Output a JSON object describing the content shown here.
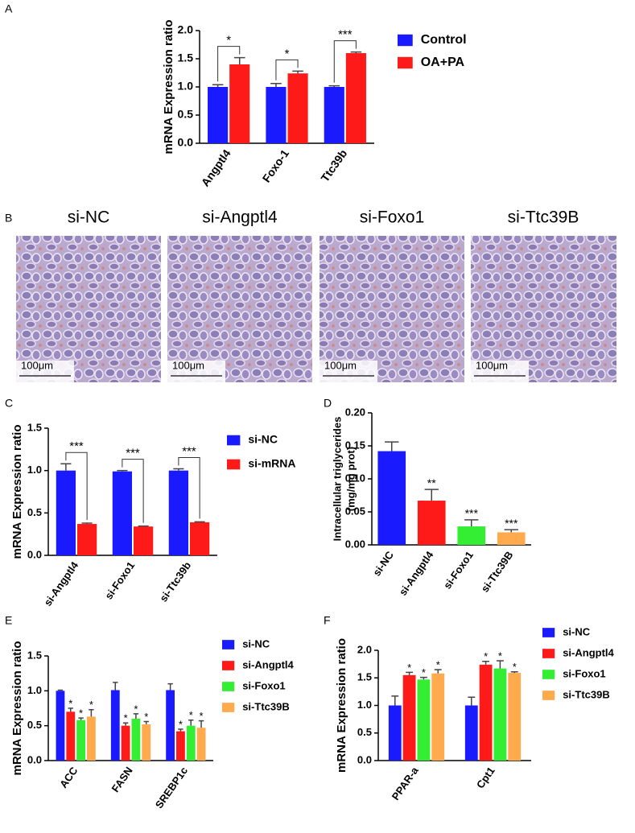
{
  "chart_data": [
    {
      "type": "bar",
      "label": "A",
      "ylabel": "mRNA Expression ratio",
      "categories": [
        "Angptl4",
        "Foxo-1",
        "Ttc39b"
      ],
      "series": [
        {
          "name": "Control",
          "color": "#1a1aff",
          "values": [
            1.0,
            1.0,
            1.0
          ],
          "errors": [
            0.04,
            0.06,
            0.02
          ]
        },
        {
          "name": "OA+PA",
          "color": "#ff1a1a",
          "values": [
            1.4,
            1.24,
            1.6
          ],
          "errors": [
            0.12,
            0.04,
            0.02
          ]
        }
      ],
      "significance": [
        "*",
        "*",
        "***"
      ],
      "ylim": [
        0,
        2
      ],
      "yticks": [
        {
          "value": 0,
          "label": "0.0"
        },
        {
          "value": 0.5,
          "label": "0.5"
        },
        {
          "value": 1,
          "label": "1.0"
        },
        {
          "value": 1.5,
          "label": "1.5"
        },
        {
          "value": 2,
          "label": "2.0"
        }
      ]
    },
    {
      "type": "bar",
      "label": "C",
      "ylabel": "mRNA Expression ratio",
      "categories": [
        "si-Angptl4",
        "si-Foxo1",
        "si-Ttc39b"
      ],
      "series": [
        {
          "name": "si-NC",
          "color": "#1a1aff",
          "values": [
            1.0,
            0.99,
            1.0
          ],
          "errors": [
            0.08,
            0.01,
            0.02
          ]
        },
        {
          "name": "si-mRNA",
          "color": "#ff1a1a",
          "values": [
            0.37,
            0.34,
            0.39
          ],
          "errors": [
            0.01,
            0.005,
            0.005
          ]
        }
      ],
      "significance": [
        "***",
        "***",
        "***"
      ],
      "ylim": [
        0,
        1.5
      ],
      "yticks": [
        {
          "value": 0,
          "label": "0.0"
        },
        {
          "value": 0.5,
          "label": "0.5"
        },
        {
          "value": 1,
          "label": "1.0"
        },
        {
          "value": 1.5,
          "label": "1.5"
        }
      ]
    },
    {
      "type": "bar",
      "label": "D",
      "ylabel": [
        "Intracellular triglycerides",
        "(mg/mg prot)"
      ],
      "categories": [
        "si-NC",
        "si-Angptl4",
        "si-Foxo1",
        "si-Ttc39B"
      ],
      "values": [
        0.142,
        0.067,
        0.028,
        0.019
      ],
      "errors": [
        0.014,
        0.017,
        0.01,
        0.004
      ],
      "colors": [
        "#1a1aff",
        "#ff1a1a",
        "#33ee33",
        "#ffaa4d"
      ],
      "significance": [
        null,
        "**",
        "***",
        "***"
      ],
      "ylim": [
        0,
        0.2
      ],
      "yticks": [
        {
          "value": 0,
          "label": "0.00"
        },
        {
          "value": 0.05,
          "label": "0.05"
        },
        {
          "value": 0.1,
          "label": "0.10"
        },
        {
          "value": 0.15,
          "label": "0.15"
        },
        {
          "value": 0.2,
          "label": "0.20"
        }
      ]
    },
    {
      "type": "bar",
      "label": "E",
      "ylabel": "mRNA Expression ratio",
      "categories": [
        "ACC",
        "FASN",
        "SREBP1c"
      ],
      "series": [
        {
          "name": "si-NC",
          "color": "#1a1aff",
          "values": [
            1.0,
            1.01,
            1.01
          ],
          "errors": [
            0.01,
            0.11,
            0.09
          ],
          "significance": [
            null,
            null,
            null
          ]
        },
        {
          "name": "si-Angptl4",
          "color": "#ff1a1a",
          "values": [
            0.7,
            0.5,
            0.42
          ],
          "errors": [
            0.05,
            0.04,
            0.03
          ],
          "significance": [
            "*",
            "*",
            "*"
          ]
        },
        {
          "name": "si-Foxo1",
          "color": "#33ee33",
          "values": [
            0.58,
            0.6,
            0.5
          ],
          "errors": [
            0.03,
            0.07,
            0.08
          ],
          "significance": [
            "*",
            "*",
            "*"
          ]
        },
        {
          "name": "si-Ttc39B",
          "color": "#ffaa4d",
          "values": [
            0.63,
            0.52,
            0.47
          ],
          "errors": [
            0.1,
            0.04,
            0.1
          ],
          "significance": [
            "*",
            "*",
            "*"
          ]
        }
      ],
      "ylim": [
        0,
        1.5
      ],
      "yticks": [
        {
          "value": 0,
          "label": "0.0"
        },
        {
          "value": 0.5,
          "label": "0.5"
        },
        {
          "value": 1,
          "label": "1.0"
        },
        {
          "value": 1.5,
          "label": "1.5"
        }
      ]
    },
    {
      "type": "bar",
      "label": "F",
      "ylabel": "mRNA Expression ratio",
      "categories": [
        "PPAR-a",
        "Cpt1"
      ],
      "series": [
        {
          "name": "si-NC",
          "color": "#1a1aff",
          "values": [
            1.0,
            1.0
          ],
          "errors": [
            0.17,
            0.15
          ],
          "significance": [
            null,
            null
          ]
        },
        {
          "name": "si-Angptl4",
          "color": "#ff1a1a",
          "values": [
            1.55,
            1.74
          ],
          "errors": [
            0.05,
            0.06
          ],
          "significance": [
            "*",
            "*"
          ]
        },
        {
          "name": "si-Foxo1",
          "color": "#33ee33",
          "values": [
            1.47,
            1.67
          ],
          "errors": [
            0.04,
            0.14
          ],
          "significance": [
            "*",
            "*"
          ]
        },
        {
          "name": "si-Ttc39B",
          "color": "#ffaa4d",
          "values": [
            1.58,
            1.59
          ],
          "errors": [
            0.07,
            0.02
          ],
          "significance": [
            "*",
            "*"
          ]
        }
      ],
      "ylim": [
        0,
        2
      ],
      "yticks": [
        {
          "value": 0,
          "label": "0.0"
        },
        {
          "value": 0.5,
          "label": "0.5"
        },
        {
          "value": 1,
          "label": "1.0"
        },
        {
          "value": 1.5,
          "label": "1.5"
        },
        {
          "value": 2,
          "label": "2.0"
        }
      ]
    }
  ],
  "images": {
    "label": "B",
    "panels": [
      {
        "title": "si-NC",
        "scale": "100μm"
      },
      {
        "title": "si-Angptl4",
        "scale": "100μm"
      },
      {
        "title": "si-Foxo1",
        "scale": "100μm"
      },
      {
        "title": "si-Ttc39B",
        "scale": "100μm"
      }
    ]
  }
}
